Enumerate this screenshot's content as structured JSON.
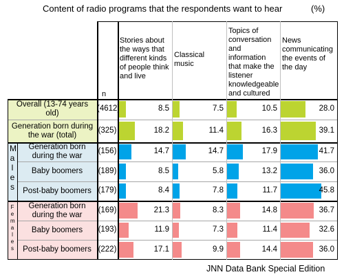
{
  "title": "Content of radio programs that the respondents want to hear",
  "unit": "(%)",
  "footer": "JNN  Data Bank Special Edition",
  "n_header": "n",
  "males_label": "M a l e s",
  "females_label": "F e m a l e s",
  "colors": {
    "overall": "#bcd431",
    "males": "#00a3e8",
    "females": "#f48a8a",
    "overall_bg": "#ecf3c4",
    "males_bg": "#dcebf2",
    "females_bg": "#fbe0e0"
  },
  "chart_data": {
    "type": "bar",
    "title": "Content of radio programs that the respondents want to hear",
    "unit": "(%)",
    "columns": [
      "Stories about the ways that different kinds of people think and live",
      "Classical music",
      "Topics of conversation and information that make the listener knowledgeable and cultured",
      "News communicating the events of the day"
    ],
    "rows": [
      {
        "group": "overall",
        "label": "Overall (13-74 years old)",
        "n": "(4612)",
        "values": [
          8.5,
          7.5,
          10.5,
          28.0
        ]
      },
      {
        "group": "overall",
        "label": "Generation born during the war (total)",
        "n": "(325)",
        "values": [
          18.2,
          11.4,
          16.3,
          39.1
        ]
      },
      {
        "group": "males",
        "label": "Generation born during the war",
        "n": "(156)",
        "values": [
          14.7,
          14.7,
          17.9,
          41.7
        ]
      },
      {
        "group": "males",
        "label": "Baby boomers",
        "n": "(189)",
        "values": [
          8.5,
          5.8,
          13.2,
          36.0
        ]
      },
      {
        "group": "males",
        "label": "Post-baby boomers",
        "n": "(179)",
        "values": [
          8.4,
          7.8,
          11.7,
          45.8
        ]
      },
      {
        "group": "females",
        "label": "Generation born during the war",
        "n": "(169)",
        "values": [
          21.3,
          8.3,
          14.8,
          36.7
        ]
      },
      {
        "group": "females",
        "label": "Baby boomers",
        "n": "(193)",
        "values": [
          11.9,
          7.3,
          11.4,
          32.6
        ]
      },
      {
        "group": "females",
        "label": "Post-baby boomers",
        "n": "(222)",
        "values": [
          17.1,
          9.9,
          14.4,
          36.0
        ]
      }
    ]
  }
}
